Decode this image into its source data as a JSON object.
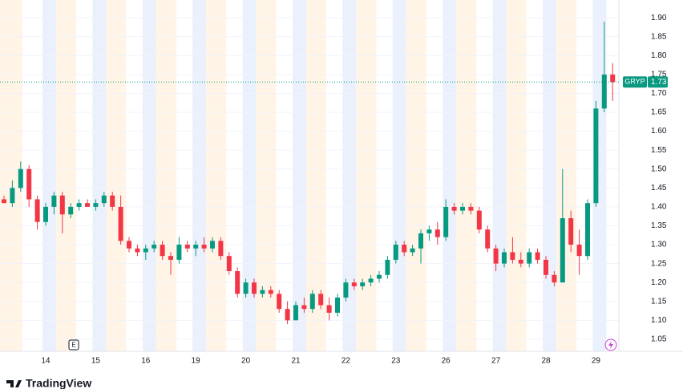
{
  "chart_data": {
    "type": "candlestick",
    "symbol": "GRYP",
    "last_price": 1.73,
    "event_marker": "E",
    "branding": "TradingView",
    "up_color": "#089981",
    "down_color": "#f23645",
    "categories": [
      null,
      null,
      null,
      null,
      null,
      "14",
      null,
      null,
      null,
      null,
      null,
      "15",
      null,
      null,
      null,
      null,
      null,
      "16",
      null,
      null,
      null,
      null,
      null,
      "19",
      null,
      null,
      null,
      null,
      null,
      "20",
      null,
      null,
      null,
      null,
      null,
      "21",
      null,
      null,
      null,
      null,
      null,
      "22",
      null,
      null,
      null,
      null,
      null,
      "23",
      null,
      null,
      null,
      null,
      null,
      "26",
      null,
      null,
      null,
      null,
      null,
      "27",
      null,
      null,
      null,
      null,
      null,
      "28",
      null,
      null,
      null,
      null,
      null,
      "29",
      null,
      null
    ],
    "open": [
      1.42,
      1.41,
      1.45,
      1.5,
      1.42,
      1.36,
      1.4,
      1.43,
      1.38,
      1.4,
      1.41,
      1.4,
      1.41,
      1.43,
      1.4,
      1.31,
      1.29,
      1.28,
      1.29,
      1.3,
      1.27,
      1.26,
      1.3,
      1.29,
      1.3,
      1.29,
      1.31,
      1.27,
      1.23,
      1.17,
      1.2,
      1.17,
      1.18,
      1.17,
      1.13,
      1.1,
      1.14,
      1.13,
      1.17,
      1.14,
      1.12,
      1.16,
      1.2,
      1.19,
      1.2,
      1.21,
      1.22,
      1.26,
      1.3,
      1.28,
      1.29,
      1.33,
      1.34,
      1.32,
      1.4,
      1.39,
      1.4,
      1.39,
      1.34,
      1.29,
      1.25,
      1.28,
      1.26,
      1.25,
      1.28,
      1.26,
      1.22,
      1.2,
      1.37,
      1.3,
      1.27,
      1.41,
      1.66,
      1.75
    ],
    "high": [
      1.43,
      1.47,
      1.52,
      1.51,
      1.43,
      1.41,
      1.44,
      1.44,
      1.41,
      1.42,
      1.42,
      1.42,
      1.44,
      1.44,
      1.43,
      1.32,
      1.3,
      1.3,
      1.31,
      1.31,
      1.28,
      1.32,
      1.31,
      1.31,
      1.32,
      1.32,
      1.32,
      1.28,
      1.24,
      1.21,
      1.21,
      1.19,
      1.19,
      1.18,
      1.15,
      1.15,
      1.16,
      1.18,
      1.18,
      1.16,
      1.17,
      1.21,
      1.21,
      1.21,
      1.22,
      1.23,
      1.27,
      1.31,
      1.31,
      1.3,
      1.34,
      1.35,
      1.36,
      1.42,
      1.41,
      1.41,
      1.41,
      1.4,
      1.35,
      1.3,
      1.29,
      1.32,
      1.28,
      1.29,
      1.29,
      1.27,
      1.23,
      1.5,
      1.39,
      1.34,
      1.42,
      1.68,
      1.89,
      1.78
    ],
    "low": [
      1.41,
      1.4,
      1.44,
      1.4,
      1.34,
      1.35,
      1.38,
      1.33,
      1.37,
      1.39,
      1.4,
      1.39,
      1.4,
      1.39,
      1.3,
      1.28,
      1.27,
      1.26,
      1.28,
      1.26,
      1.22,
      1.25,
      1.28,
      1.27,
      1.28,
      1.28,
      1.26,
      1.22,
      1.16,
      1.16,
      1.16,
      1.16,
      1.16,
      1.12,
      1.09,
      1.1,
      1.12,
      1.12,
      1.13,
      1.1,
      1.11,
      1.15,
      1.18,
      1.18,
      1.19,
      1.2,
      1.21,
      1.25,
      1.27,
      1.27,
      1.25,
      1.31,
      1.3,
      1.31,
      1.38,
      1.38,
      1.38,
      1.33,
      1.28,
      1.23,
      1.24,
      1.25,
      1.24,
      1.24,
      1.25,
      1.21,
      1.19,
      1.2,
      1.28,
      1.22,
      1.26,
      1.4,
      1.65,
      1.68
    ],
    "close": [
      1.41,
      1.45,
      1.5,
      1.42,
      1.36,
      1.4,
      1.43,
      1.38,
      1.4,
      1.41,
      1.4,
      1.41,
      1.43,
      1.4,
      1.31,
      1.29,
      1.28,
      1.29,
      1.3,
      1.27,
      1.26,
      1.3,
      1.29,
      1.3,
      1.29,
      1.31,
      1.27,
      1.23,
      1.17,
      1.2,
      1.17,
      1.18,
      1.17,
      1.13,
      1.1,
      1.14,
      1.13,
      1.17,
      1.14,
      1.12,
      1.16,
      1.2,
      1.19,
      1.2,
      1.21,
      1.22,
      1.26,
      1.3,
      1.28,
      1.29,
      1.33,
      1.34,
      1.32,
      1.4,
      1.39,
      1.4,
      1.39,
      1.34,
      1.29,
      1.25,
      1.28,
      1.26,
      1.25,
      1.28,
      1.26,
      1.22,
      1.2,
      1.37,
      1.3,
      1.27,
      1.41,
      1.66,
      1.75,
      1.73
    ],
    "ylim": [
      1.018,
      1.947
    ],
    "yticks": [
      1.05,
      {
        "value": 1.1,
        "label": "1.10"
      },
      1.15,
      {
        "value": 1.2,
        "label": "1.20"
      },
      1.25,
      {
        "value": 1.3,
        "label": "1.30"
      },
      1.35,
      {
        "value": 1.4,
        "label": "1.40"
      },
      1.45,
      {
        "value": 1.5,
        "label": "1.50"
      },
      1.55,
      {
        "value": 1.6,
        "label": "1.60"
      },
      1.65,
      {
        "value": 1.7,
        "label": "1.70"
      },
      1.75,
      {
        "value": 1.8,
        "label": "1.80"
      },
      1.85,
      {
        "value": 1.9,
        "label": "1.90"
      }
    ],
    "grid": true
  }
}
